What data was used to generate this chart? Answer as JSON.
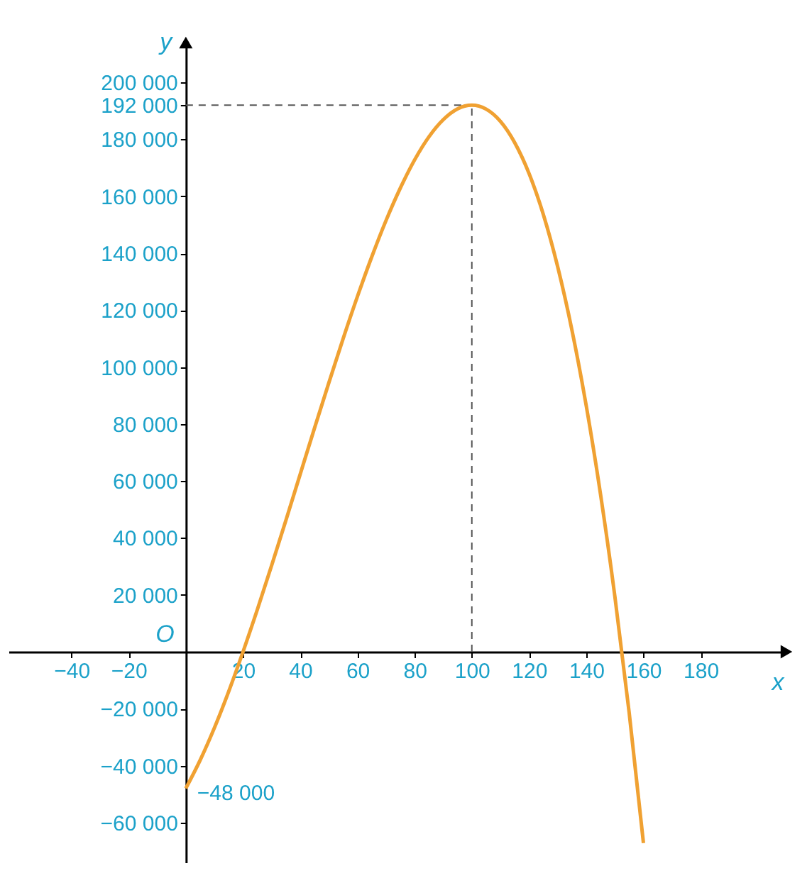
{
  "chart_data": {
    "type": "line",
    "xlabel": "x",
    "ylabel": "y",
    "x": [
      0,
      5,
      10,
      15,
      20,
      25,
      30,
      35,
      40,
      45,
      50,
      55,
      60,
      65,
      70,
      75,
      80,
      85,
      90,
      95,
      100,
      105,
      110,
      115,
      120,
      125,
      130,
      135,
      140,
      145,
      150,
      155,
      160
    ],
    "series": [
      {
        "color": "#f0a132",
        "values": [
          -48000,
          -38100,
          -26700,
          -13900,
          0,
          14800,
          30300,
          46200,
          62400,
          78600,
          94500,
          110000,
          124800,
          138700,
          151500,
          162900,
          172800,
          180900,
          186900,
          190700,
          192000,
          190600,
          186300,
          178800,
          168000,
          153600,
          135300,
          113000,
          86400,
          55300,
          19500,
          -21300,
          -67200
        ]
      }
    ],
    "xlim": [
      -62,
      210
    ],
    "ylim": [
      -74000,
      214000
    ],
    "xticks": [
      {
        "value": -40,
        "label": "−40"
      },
      {
        "value": -20,
        "label": "−20"
      },
      20,
      40,
      60,
      80,
      100,
      120,
      140,
      160,
      180
    ],
    "yticks": [
      {
        "value": -60000,
        "label": "−60 000"
      },
      {
        "value": -40000,
        "label": "−40 000"
      },
      {
        "value": -20000,
        "label": "−20 000"
      },
      {
        "value": 20000,
        "label": "20 000"
      },
      {
        "value": 40000,
        "label": "40 000"
      },
      {
        "value": 60000,
        "label": "60 000"
      },
      {
        "value": 80000,
        "label": "80 000"
      },
      {
        "value": 100000,
        "label": "100 000"
      },
      {
        "value": 120000,
        "label": "120 000"
      },
      {
        "value": 140000,
        "label": "140 000"
      },
      {
        "value": 160000,
        "label": "160 000"
      },
      {
        "value": 180000,
        "label": "180 000"
      },
      {
        "value": 192000,
        "label": "192 000"
      },
      {
        "value": 200000,
        "label": "200 000"
      }
    ],
    "ref_lines": [
      {
        "axis": "y",
        "value": 192000,
        "line_style": "dashed"
      },
      {
        "axis": "x",
        "value": 100,
        "line_style": "dashed"
      }
    ],
    "annotations": [
      "O",
      {
        "text": "−48 000",
        "x": 0,
        "y": -48000
      }
    ],
    "grid": false,
    "marker": "none",
    "line_style": "solid"
  }
}
